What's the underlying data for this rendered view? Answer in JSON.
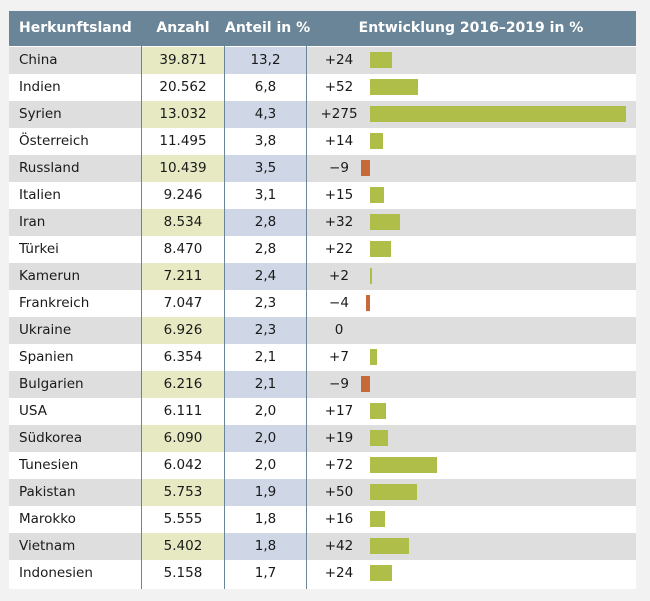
{
  "header": {
    "country": "Herkunftsland",
    "count": "Anzahl",
    "share": "Anteil in %",
    "change": "Entwicklung 2016–2019 in %"
  },
  "colors": {
    "header_bg": "#6a8597",
    "row_shade": "#dedede",
    "count_highlight": "#e6e9c2",
    "share_highlight": "#cfd6e5",
    "positive_bar": "#afbe48",
    "negative_bar": "#c8693a"
  },
  "chart_data": {
    "type": "table",
    "columns": [
      "Herkunftsland",
      "Anzahl",
      "Anteil in %",
      "Entwicklung 2016–2019 in %"
    ],
    "bar_scale_max": 275,
    "rows": [
      {
        "country": "China",
        "count": "39.871",
        "share": "13,2",
        "change_label": "+24",
        "change": 24
      },
      {
        "country": "Indien",
        "count": "20.562",
        "share": "6,8",
        "change_label": "+52",
        "change": 52
      },
      {
        "country": "Syrien",
        "count": "13.032",
        "share": "4,3",
        "change_label": "+275",
        "change": 275
      },
      {
        "country": "Österreich",
        "count": "11.495",
        "share": "3,8",
        "change_label": "+14",
        "change": 14
      },
      {
        "country": "Russland",
        "count": "10.439",
        "share": "3,5",
        "change_label": "−9",
        "change": -9
      },
      {
        "country": "Italien",
        "count": "9.246",
        "share": "3,1",
        "change_label": "+15",
        "change": 15
      },
      {
        "country": "Iran",
        "count": "8.534",
        "share": "2,8",
        "change_label": "+32",
        "change": 32
      },
      {
        "country": "Türkei",
        "count": "8.470",
        "share": "2,8",
        "change_label": "+22",
        "change": 22
      },
      {
        "country": "Kamerun",
        "count": "7.211",
        "share": "2,4",
        "change_label": "+2",
        "change": 2
      },
      {
        "country": "Frankreich",
        "count": "7.047",
        "share": "2,3",
        "change_label": "−4",
        "change": -4
      },
      {
        "country": "Ukraine",
        "count": "6.926",
        "share": "2,3",
        "change_label": "0",
        "change": 0
      },
      {
        "country": "Spanien",
        "count": "6.354",
        "share": "2,1",
        "change_label": "+7",
        "change": 7
      },
      {
        "country": "Bulgarien",
        "count": "6.216",
        "share": "2,1",
        "change_label": "−9",
        "change": -9
      },
      {
        "country": "USA",
        "count": "6.111",
        "share": "2,0",
        "change_label": "+17",
        "change": 17
      },
      {
        "country": "Südkorea",
        "count": "6.090",
        "share": "2,0",
        "change_label": "+19",
        "change": 19
      },
      {
        "country": "Tunesien",
        "count": "6.042",
        "share": "2,0",
        "change_label": "+72",
        "change": 72
      },
      {
        "country": "Pakistan",
        "count": "5.753",
        "share": "1,9",
        "change_label": "+50",
        "change": 50
      },
      {
        "country": "Marokko",
        "count": "5.555",
        "share": "1,8",
        "change_label": "+16",
        "change": 16
      },
      {
        "country": "Vietnam",
        "count": "5.402",
        "share": "1,8",
        "change_label": "+42",
        "change": 42
      },
      {
        "country": "Indonesien",
        "count": "5.158",
        "share": "1,7",
        "change_label": "+24",
        "change": 24
      }
    ]
  }
}
